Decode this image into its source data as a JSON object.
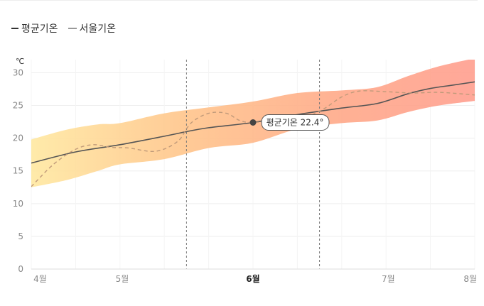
{
  "legend": {
    "avg_label": "평균기온",
    "seoul_label": "서울기온"
  },
  "tooltip": {
    "label": "평균기온 22.4°"
  },
  "chart_data": {
    "type": "line",
    "unit_label": "℃",
    "ylim": [
      0,
      32
    ],
    "yticks": [
      0,
      5,
      10,
      15,
      20,
      25,
      30
    ],
    "x_range": [
      0,
      100
    ],
    "month_ticks": [
      {
        "label": "4월",
        "x": 2,
        "bold": false
      },
      {
        "label": "5월",
        "x": 20.5,
        "bold": false
      },
      {
        "label": "6월",
        "x": 50,
        "bold": true
      },
      {
        "label": "7월",
        "x": 80.5,
        "bold": false
      },
      {
        "label": "8월",
        "x": 99,
        "bold": false
      }
    ],
    "dashed_markers": [
      35,
      65
    ],
    "highlight_x": 50,
    "series": [
      {
        "name": "평균기온",
        "style": "solid",
        "color": "#555555",
        "points": [
          [
            0,
            16.2
          ],
          [
            10,
            17.9
          ],
          [
            20,
            19.0
          ],
          [
            30,
            20.3
          ],
          [
            35,
            21.0
          ],
          [
            40,
            21.6
          ],
          [
            50,
            22.4
          ],
          [
            60,
            23.6
          ],
          [
            70,
            24.6
          ],
          [
            78,
            25.3
          ],
          [
            85,
            26.8
          ],
          [
            90,
            27.6
          ],
          [
            95,
            28.1
          ],
          [
            100,
            28.6
          ]
        ]
      },
      {
        "name": "서울기온",
        "style": "dashed",
        "color": "#c09a7a",
        "points": [
          [
            0,
            12.6
          ],
          [
            5,
            16.0
          ],
          [
            10,
            18.3
          ],
          [
            14,
            19.0
          ],
          [
            18,
            18.6
          ],
          [
            22,
            18.5
          ],
          [
            28,
            18.0
          ],
          [
            33,
            19.5
          ],
          [
            36,
            22.3
          ],
          [
            40,
            23.8
          ],
          [
            44,
            23.8
          ],
          [
            47,
            22.7
          ],
          [
            50,
            22.4
          ],
          [
            56,
            22.8
          ],
          [
            62,
            23.3
          ],
          [
            66,
            24.5
          ],
          [
            70,
            26.3
          ],
          [
            74,
            27.2
          ],
          [
            80,
            27.1
          ],
          [
            86,
            26.9
          ],
          [
            92,
            27.0
          ],
          [
            100,
            26.6
          ]
        ]
      }
    ],
    "band": {
      "upper": [
        [
          0,
          19.8
        ],
        [
          8,
          21.3
        ],
        [
          15,
          22.1
        ],
        [
          20,
          22.3
        ],
        [
          30,
          23.8
        ],
        [
          40,
          24.7
        ],
        [
          50,
          25.6
        ],
        [
          60,
          26.9
        ],
        [
          70,
          27.3
        ],
        [
          78,
          27.8
        ],
        [
          85,
          29.5
        ],
        [
          92,
          31.0
        ],
        [
          100,
          32.2
        ]
      ],
      "lower": [
        [
          0,
          12.5
        ],
        [
          8,
          13.6
        ],
        [
          15,
          15.0
        ],
        [
          20,
          16.0
        ],
        [
          30,
          16.8
        ],
        [
          40,
          18.5
        ],
        [
          50,
          19.3
        ],
        [
          60,
          21.4
        ],
        [
          70,
          22.3
        ],
        [
          78,
          22.7
        ],
        [
          85,
          24.0
        ],
        [
          92,
          25.0
        ],
        [
          100,
          25.7
        ]
      ],
      "colors": [
        "#ffe8a0",
        "#ffc48a",
        "#ffa888",
        "#ff9e8e"
      ]
    }
  }
}
